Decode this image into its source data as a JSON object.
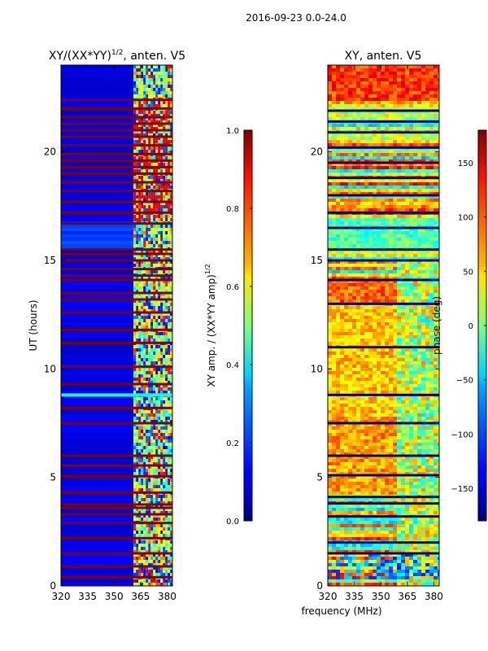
{
  "suptitle": "2016-09-23 0.0-24.0",
  "shared_xlabel": "frequency (MHz)",
  "chart_data": [
    {
      "type": "heatmap",
      "title_main": "XY/(XX*YY)",
      "title_exp": "1/2",
      "title_tail": ", anten. V5",
      "ylabel": "UT (hours)",
      "xlim": [
        320,
        383
      ],
      "ylim": [
        0,
        24
      ],
      "xticks": [
        320,
        335,
        350,
        365,
        380
      ],
      "yticks": [
        0,
        5,
        10,
        15,
        20
      ],
      "colormap": "jet",
      "colorbar": {
        "label_main": "XY amp. / (XX*YY amp)",
        "label_exp": "1/2",
        "range": [
          0.0,
          1.0
        ],
        "ticks": [
          "0.0",
          "0.2",
          "0.4",
          "0.6",
          "0.8",
          "1.0"
        ]
      },
      "bright_band_mhz": [
        361,
        383
      ],
      "saturated_rows_ut": [
        0.4,
        0.9,
        1.5,
        2.2,
        2.9,
        3.3,
        3.6,
        3.75,
        4.3,
        5.05,
        5.55,
        6.0,
        7.5,
        8.2,
        9.3,
        10.1,
        11.2,
        11.8,
        12.6,
        13.2,
        13.5,
        14.1,
        14.3,
        14.6,
        15.0,
        15.3,
        15.5,
        16.7,
        17.2,
        17.7,
        18.2,
        18.6,
        19.0,
        19.3,
        19.6,
        19.9,
        20.3,
        20.7,
        21.0,
        21.3,
        21.6,
        22.0,
        22.4
      ],
      "flare_ut": 8.8
    },
    {
      "type": "heatmap",
      "title": "XY, anten. V5",
      "xlim": [
        320,
        383
      ],
      "ylim": [
        0,
        24
      ],
      "xticks": [
        320,
        335,
        350,
        365,
        380
      ],
      "yticks": [
        0,
        5,
        10,
        15,
        20
      ],
      "colormap": "jet",
      "colorbar": {
        "label": "phase (deg)",
        "range": [
          -180,
          180
        ],
        "ticks": [
          "150",
          "100",
          "50",
          "0",
          "−50",
          "−100",
          "−150"
        ],
        "tick_values": [
          150,
          100,
          50,
          0,
          -50,
          -100,
          -150
        ]
      },
      "blank_rows_ut": [
        1.5,
        2.0,
        3.2,
        3.8,
        4.1,
        5.1,
        6.0,
        7.5,
        8.8,
        11.0,
        13.0,
        14.1,
        15.0,
        15.5,
        16.5,
        17.2,
        18.0,
        18.8,
        19.5,
        20.2,
        20.9,
        21.4,
        21.9
      ]
    }
  ]
}
